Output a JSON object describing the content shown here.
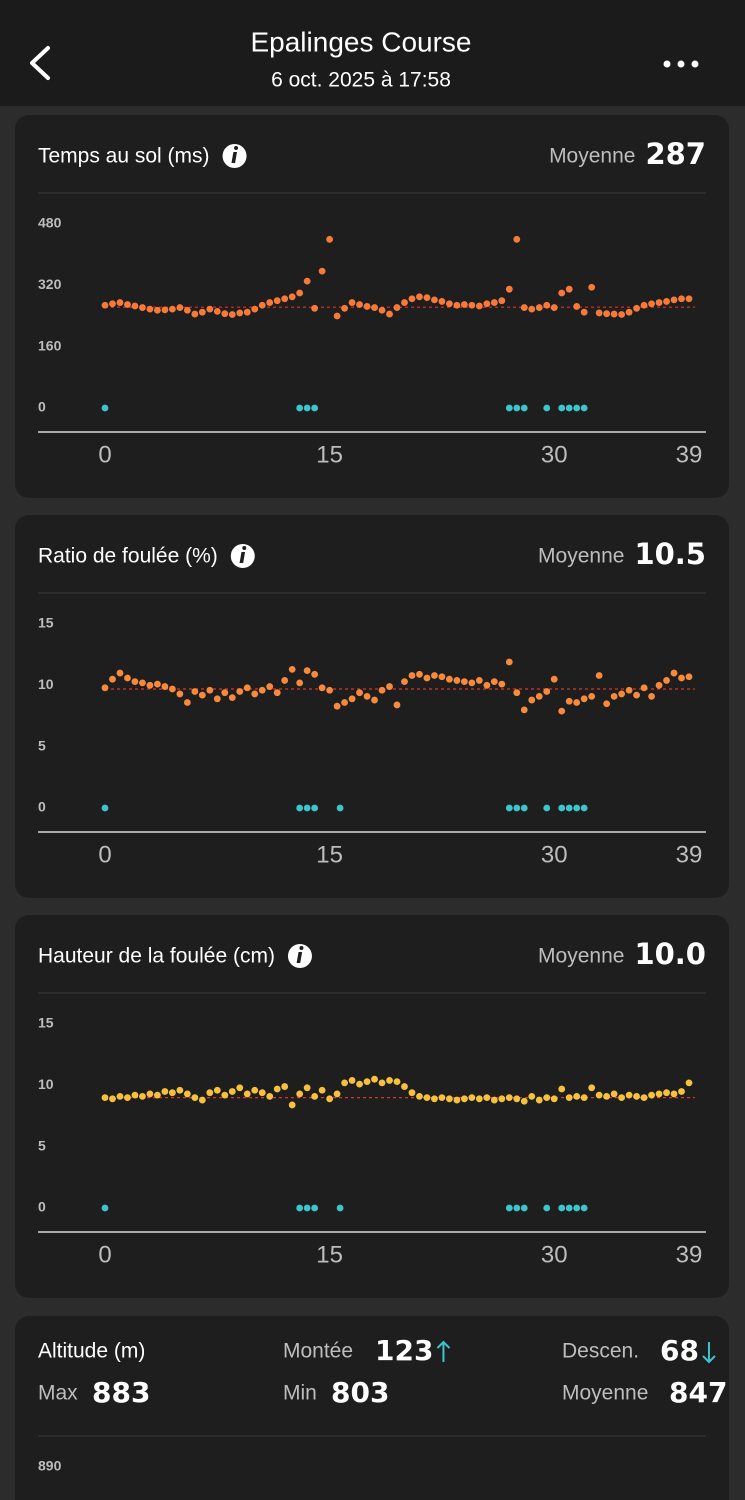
{
  "header": {
    "title": "Epalinges Course",
    "subtitle": "6 oct. 2025 à 17:58"
  },
  "chart_data": [
    {
      "type": "scatter",
      "title": "Temps au sol (ms)",
      "average_title": "Moyenne",
      "average": 287,
      "xlim": [
        0,
        39
      ],
      "xticks": [
        0,
        15,
        30,
        39
      ],
      "ylim": [
        0,
        480
      ],
      "yticks": [
        0,
        160,
        320,
        480
      ],
      "reference_line": 263,
      "reference_color": "#d9342b",
      "series": [
        {
          "color": "#f87a3a",
          "x": [
            0,
            0.5,
            1,
            1.5,
            2,
            2.5,
            3,
            3.5,
            4,
            4.5,
            5,
            5.5,
            6,
            6.5,
            7,
            7.5,
            8,
            8.5,
            9,
            9.5,
            10,
            10.5,
            11,
            11.5,
            12,
            12.5,
            13,
            13.5,
            14,
            14.5,
            15,
            15.5,
            16,
            16.5,
            17,
            17.5,
            18,
            18.5,
            19,
            19.5,
            20,
            20.5,
            21,
            21.5,
            22,
            22.5,
            23,
            23.5,
            24,
            24.5,
            25,
            25.5,
            26,
            26.5,
            27,
            27.5,
            28,
            28.5,
            29,
            29.5,
            30,
            30.5,
            31,
            31.5,
            32,
            32.5,
            33,
            33.5,
            34,
            34.5,
            35,
            35.5,
            36,
            36.5,
            37,
            37.5,
            38,
            38.5,
            39
          ],
          "values": [
            268,
            272,
            275,
            270,
            266,
            262,
            258,
            255,
            256,
            258,
            262,
            255,
            245,
            250,
            258,
            252,
            246,
            244,
            248,
            250,
            258,
            268,
            275,
            280,
            285,
            290,
            300,
            331,
            260,
            357,
            440,
            240,
            260,
            275,
            270,
            265,
            262,
            255,
            245,
            262,
            275,
            285,
            290,
            288,
            282,
            278,
            272,
            268,
            270,
            268,
            266,
            272,
            275,
            280,
            310,
            440,
            262,
            258,
            262,
            268,
            262,
            300,
            310,
            265,
            250,
            315,
            248,
            246,
            245,
            244,
            250,
            260,
            268,
            272,
            275,
            278,
            282,
            285,
            285
          ]
        },
        {
          "color": "#3cc6cc",
          "x": [
            0,
            13,
            13.5,
            14,
            27,
            27.5,
            28,
            29.5,
            30.5,
            31,
            31.5,
            32
          ],
          "values": [
            0,
            0,
            0,
            0,
            0,
            0,
            0,
            0,
            0,
            0,
            0,
            0
          ]
        }
      ]
    },
    {
      "type": "scatter",
      "title": "Ratio de foulée (%)",
      "average_title": "Moyenne",
      "average": 10.5,
      "xlim": [
        0,
        39
      ],
      "xticks": [
        0,
        15,
        30,
        39
      ],
      "ylim": [
        0,
        15
      ],
      "yticks": [
        0,
        5,
        10,
        15
      ],
      "reference_line": 9.7,
      "reference_color": "#d9342b",
      "series": [
        {
          "color": "#f98a3c",
          "x": [
            0,
            0.5,
            1,
            1.5,
            2,
            2.5,
            3,
            3.5,
            4,
            4.5,
            5,
            5.5,
            6,
            6.5,
            7,
            7.5,
            8,
            8.5,
            9,
            9.5,
            10,
            10.5,
            11,
            11.5,
            12,
            12.5,
            13,
            13.5,
            14,
            14.5,
            15,
            15.5,
            16,
            16.5,
            17,
            17.5,
            18,
            18.5,
            19,
            19.5,
            20,
            20.5,
            21,
            21.5,
            22,
            22.5,
            23,
            23.5,
            24,
            24.5,
            25,
            25.5,
            26,
            26.5,
            27,
            27.5,
            28,
            28.5,
            29,
            29.5,
            30,
            30.5,
            31,
            31.5,
            32,
            32.5,
            33,
            33.5,
            34,
            34.5,
            35,
            35.5,
            36,
            36.5,
            37,
            37.5,
            38,
            38.5,
            39
          ],
          "values": [
            9.8,
            10.5,
            11,
            10.6,
            10.3,
            10.2,
            10,
            10.1,
            9.9,
            9.7,
            9.3,
            8.6,
            9.5,
            9.2,
            9.6,
            8.9,
            9.4,
            9,
            9.5,
            9.8,
            9.3,
            9.6,
            9.9,
            9.4,
            10.4,
            11.3,
            10.2,
            11.2,
            10.9,
            9.8,
            9.6,
            8.3,
            8.6,
            8.9,
            9.4,
            9.1,
            8.8,
            9.6,
            9.9,
            8.4,
            10.3,
            10.8,
            10.9,
            10.6,
            10.8,
            10.7,
            10.5,
            10.4,
            10.3,
            10.2,
            10.4,
            10,
            10.3,
            10.1,
            11.9,
            9.4,
            8,
            8.8,
            9.1,
            9.5,
            10.5,
            7.9,
            8.7,
            8.6,
            8.9,
            9.1,
            10.8,
            8.5,
            9.1,
            9.3,
            9.6,
            9.2,
            9.8,
            9.1,
            10,
            10.4,
            11,
            10.6,
            10.7
          ]
        },
        {
          "color": "#3cc6cc",
          "x": [
            0,
            13,
            13.5,
            14,
            15.7,
            27,
            27.5,
            28,
            29.5,
            30.5,
            31,
            31.5,
            32
          ],
          "values": [
            0,
            0,
            0,
            0,
            0,
            0,
            0,
            0,
            0,
            0,
            0,
            0,
            0
          ]
        }
      ]
    },
    {
      "type": "scatter",
      "title": "Hauteur de la foulée (cm)",
      "average_title": "Moyenne",
      "average": {
        "value": 10,
        "label": "10.0"
      },
      "xlim": [
        0,
        39
      ],
      "xticks": [
        0,
        15,
        30,
        39
      ],
      "ylim": [
        0,
        15
      ],
      "yticks": [
        0,
        5,
        10,
        15
      ],
      "reference_line": 9.0,
      "reference_color": "#d9342b",
      "series": [
        {
          "color": "#f6c13c",
          "x": [
            0,
            0.5,
            1,
            1.5,
            2,
            2.5,
            3,
            3.5,
            4,
            4.5,
            5,
            5.5,
            6,
            6.5,
            7,
            7.5,
            8,
            8.5,
            9,
            9.5,
            10,
            10.5,
            11,
            11.5,
            12,
            12.5,
            13,
            13.5,
            14,
            14.5,
            15,
            15.5,
            16,
            16.5,
            17,
            17.5,
            18,
            18.5,
            19,
            19.5,
            20,
            20.5,
            21,
            21.5,
            22,
            22.5,
            23,
            23.5,
            24,
            24.5,
            25,
            25.5,
            26,
            26.5,
            27,
            27.5,
            28,
            28.5,
            29,
            29.5,
            30,
            30.5,
            31,
            31.5,
            32,
            32.5,
            33,
            33.5,
            34,
            34.5,
            35,
            35.5,
            36,
            36.5,
            37,
            37.5,
            38,
            38.5,
            39
          ],
          "values": [
            9,
            8.9,
            9.1,
            9,
            9.2,
            9.1,
            9.3,
            9.2,
            9.5,
            9.4,
            9.6,
            9.3,
            9,
            8.8,
            9.4,
            9.6,
            9.2,
            9.5,
            9.8,
            9.3,
            9.6,
            9.4,
            9.1,
            9.7,
            9.9,
            8.4,
            9.3,
            9.8,
            9.1,
            9.6,
            8.9,
            9.3,
            10.2,
            10.4,
            10.1,
            10.3,
            10.5,
            10.2,
            10.4,
            10.3,
            9.9,
            9.4,
            9.1,
            9,
            8.9,
            9,
            8.9,
            8.8,
            8.9,
            9,
            8.9,
            9,
            8.8,
            8.9,
            9,
            8.9,
            8.7,
            9.1,
            8.8,
            9,
            8.9,
            9.7,
            9,
            9.1,
            9,
            9.8,
            9.2,
            9.1,
            9.3,
            9,
            9.2,
            9.1,
            9,
            9.2,
            9.3,
            9.4,
            9.3,
            9.5,
            10.2
          ]
        },
        {
          "color": "#3cc6cc",
          "x": [
            0,
            13,
            13.5,
            14,
            15.7,
            27,
            27.5,
            28,
            29.5,
            30.5,
            31,
            31.5,
            32
          ],
          "values": [
            0,
            0,
            0,
            0,
            0,
            0,
            0,
            0,
            0,
            0,
            0,
            0,
            0
          ]
        }
      ]
    }
  ],
  "altitude": {
    "title": "Altitude (m)",
    "ascent_label": "Montée",
    "ascent": 123,
    "descent_label": "Descen.",
    "descent": 68,
    "max_label": "Max",
    "max": 883,
    "min_label": "Min",
    "min": 803,
    "average_label": "Moyenne",
    "average": 847,
    "top_tick": 890
  }
}
